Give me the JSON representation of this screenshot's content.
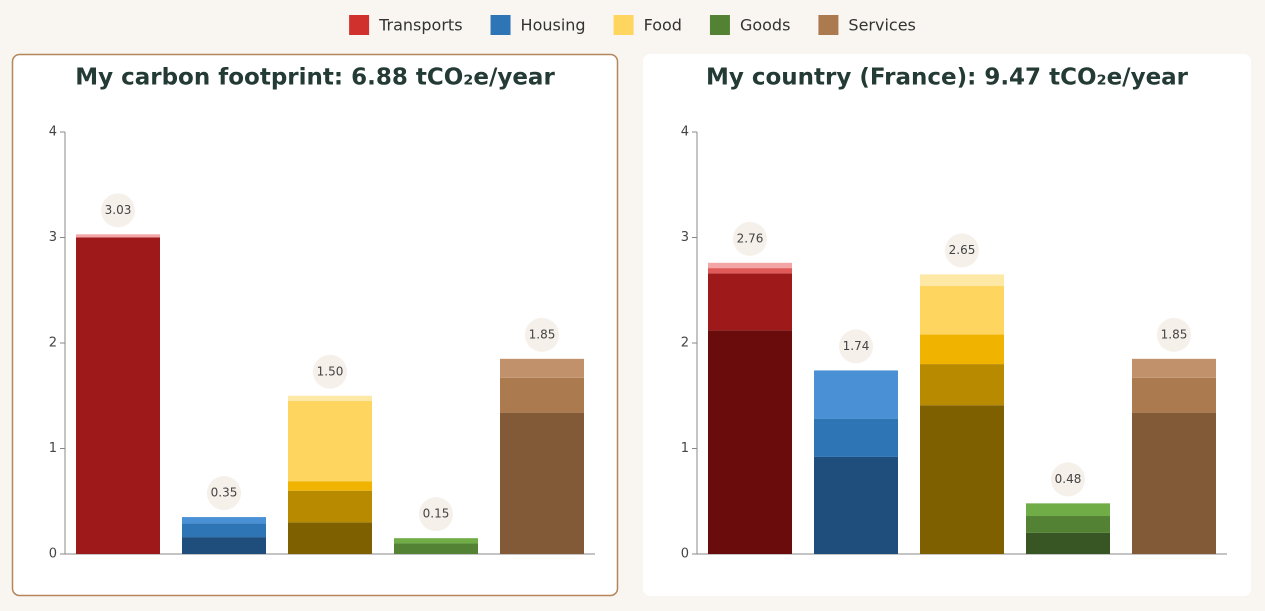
{
  "legend": [
    {
      "name": "Transports",
      "color": "#d0312d"
    },
    {
      "name": "Housing",
      "color": "#2e75b6"
    },
    {
      "name": "Food",
      "color": "#fdd55f"
    },
    {
      "name": "Goods",
      "color": "#548235"
    },
    {
      "name": "Services",
      "color": "#ab7a4f"
    }
  ],
  "chart_data": [
    {
      "type": "stacked_bar",
      "title": "My carbon footprint: 6.88 tCO₂e/year",
      "ylim": [
        0,
        4
      ],
      "yticks": [
        0,
        1,
        2,
        3,
        4
      ],
      "values": [
        3.03,
        0.35,
        1.5,
        0.15,
        1.85
      ],
      "value_labels": [
        "3.03",
        "0.35",
        "1.50",
        "0.15",
        "1.85"
      ],
      "segments": [
        [
          3.0,
          0.03
        ],
        [
          0.16,
          0.13,
          0.06
        ],
        [
          0.3,
          0.3,
          0.09,
          0.76,
          0.05
        ],
        [
          0.1,
          0.05
        ],
        [
          1.34,
          0.33,
          0.18
        ]
      ],
      "segment_colors": [
        [
          "#9e1a1a",
          "#f4a5a5"
        ],
        [
          "#1f4e7d",
          "#2e75b6",
          "#4a90d4"
        ],
        [
          "#7f6000",
          "#b88a00",
          "#f0b400",
          "#fdd55f",
          "#fde8a6"
        ],
        [
          "#548235",
          "#70ad47"
        ],
        [
          "#835a38",
          "#ab7a4f",
          "#c0916a"
        ]
      ]
    },
    {
      "type": "stacked_bar",
      "title": "My country (France): 9.47 tCO₂e/year",
      "ylim": [
        0,
        4
      ],
      "yticks": [
        0,
        1,
        2,
        3,
        4
      ],
      "values": [
        2.76,
        1.74,
        2.65,
        0.48,
        1.85
      ],
      "value_labels": [
        "2.76",
        "1.74",
        "2.65",
        "0.48",
        "1.85"
      ],
      "segments": [
        [
          2.12,
          0.54,
          0.05,
          0.05
        ],
        [
          0.92,
          0.36,
          0.46
        ],
        [
          1.41,
          0.39,
          0.28,
          0.46,
          0.11
        ],
        [
          0.2,
          0.16,
          0.12
        ],
        [
          1.34,
          0.33,
          0.18
        ]
      ],
      "segment_colors": [
        [
          "#6b0c0c",
          "#9e1a1a",
          "#e05a5a",
          "#f4a5a5"
        ],
        [
          "#1f4e7d",
          "#2e75b6",
          "#4a90d4"
        ],
        [
          "#7f6000",
          "#b88a00",
          "#f0b400",
          "#fdd55f",
          "#fde8a6"
        ],
        [
          "#375623",
          "#548235",
          "#70ad47"
        ],
        [
          "#835a38",
          "#ab7a4f",
          "#c0916a"
        ]
      ]
    }
  ]
}
